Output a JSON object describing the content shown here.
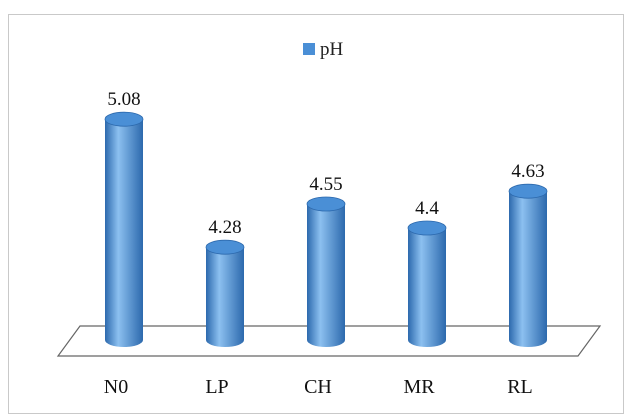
{
  "chart_data": {
    "type": "bar",
    "style": "3d-cylinder",
    "categories": [
      "N0",
      "LP",
      "CH",
      "MR",
      "RL"
    ],
    "series": [
      {
        "name": "pH",
        "values": [
          5.08,
          4.28,
          4.55,
          4.4,
          4.63
        ]
      }
    ],
    "data_labels": [
      "5.08",
      "4.28",
      "4.55",
      "4.4",
      "4.63"
    ],
    "title": "",
    "xlabel": "",
    "ylabel": "",
    "ylim": [
      3.7,
      5.2
    ],
    "grid": false,
    "legend_position": "top-center",
    "colors": {
      "bar": "#4a8fd6",
      "bar_light": "#8cc0f0",
      "bar_dark": "#2c69ad",
      "legend_swatch": "#4a8fd6",
      "floor_stroke": "#666666"
    }
  }
}
